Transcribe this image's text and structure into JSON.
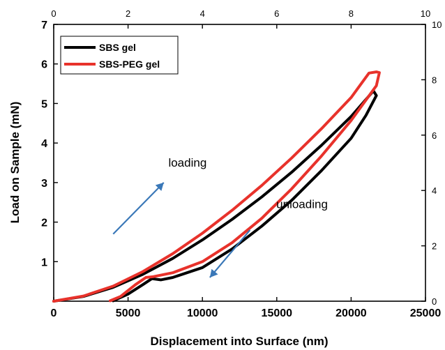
{
  "chart_data": {
    "type": "line",
    "xlabel": "Displacement into Surface (nm)",
    "ylabel": "Load on Sample (mN)",
    "xlim": [
      0,
      25000
    ],
    "ylim": [
      0,
      7
    ],
    "x_ticks": [
      0,
      5000,
      10000,
      15000,
      20000,
      25000
    ],
    "y_ticks": [
      1,
      2,
      3,
      4,
      5,
      6,
      7
    ],
    "top_axis": {
      "lim": [
        0,
        10
      ],
      "ticks": [
        0,
        2,
        4,
        6,
        8,
        10
      ]
    },
    "right_axis": {
      "lim": [
        0,
        10
      ],
      "ticks": [
        0,
        2,
        4,
        6,
        8,
        10
      ]
    },
    "grid": false,
    "legend_position": "top-left",
    "series": [
      {
        "name": "SBS gel",
        "color": "#000000",
        "points": [
          [
            0,
            0
          ],
          [
            2000,
            0.12
          ],
          [
            4000,
            0.35
          ],
          [
            6000,
            0.68
          ],
          [
            8000,
            1.08
          ],
          [
            10000,
            1.55
          ],
          [
            12000,
            2.07
          ],
          [
            14000,
            2.64
          ],
          [
            16000,
            3.26
          ],
          [
            18000,
            3.94
          ],
          [
            20000,
            4.67
          ],
          [
            21500,
            5.32
          ],
          [
            21700,
            5.2
          ],
          [
            21000,
            4.7
          ],
          [
            20000,
            4.12
          ],
          [
            18000,
            3.3
          ],
          [
            16000,
            2.55
          ],
          [
            14000,
            1.9
          ],
          [
            12000,
            1.32
          ],
          [
            10000,
            0.85
          ],
          [
            8000,
            0.6
          ],
          [
            7200,
            0.54
          ],
          [
            6600,
            0.57
          ],
          [
            6000,
            0.42
          ],
          [
            5000,
            0.18
          ],
          [
            4000,
            0.01
          ]
        ]
      },
      {
        "name": "SBS-PEG gel",
        "color": "#e8322b",
        "points": [
          [
            0,
            0
          ],
          [
            2000,
            0.13
          ],
          [
            4000,
            0.38
          ],
          [
            6000,
            0.75
          ],
          [
            8000,
            1.2
          ],
          [
            10000,
            1.72
          ],
          [
            12000,
            2.3
          ],
          [
            14000,
            2.93
          ],
          [
            16000,
            3.62
          ],
          [
            18000,
            4.36
          ],
          [
            20000,
            5.15
          ],
          [
            21200,
            5.77
          ],
          [
            21700,
            5.8
          ],
          [
            21900,
            5.78
          ],
          [
            21700,
            5.45
          ],
          [
            20000,
            4.57
          ],
          [
            18000,
            3.67
          ],
          [
            16000,
            2.84
          ],
          [
            14000,
            2.1
          ],
          [
            12000,
            1.48
          ],
          [
            10000,
            1.0
          ],
          [
            8000,
            0.72
          ],
          [
            6700,
            0.62
          ],
          [
            6200,
            0.6
          ],
          [
            5500,
            0.42
          ],
          [
            4500,
            0.12
          ],
          [
            3800,
            0.01
          ]
        ]
      }
    ],
    "annotations": [
      {
        "text": "loading",
        "x": 9000,
        "y": 3.4
      },
      {
        "text": "unloading",
        "x": 16700,
        "y": 2.35
      }
    ],
    "arrows": [
      {
        "name": "loading-arrow",
        "from": [
          4000,
          1.7
        ],
        "to": [
          7400,
          3.0
        ],
        "color": "#3a78b8"
      },
      {
        "name": "unloading-arrow",
        "from": [
          13200,
          1.8
        ],
        "to": [
          10500,
          0.6
        ],
        "color": "#3a78b8"
      }
    ]
  }
}
